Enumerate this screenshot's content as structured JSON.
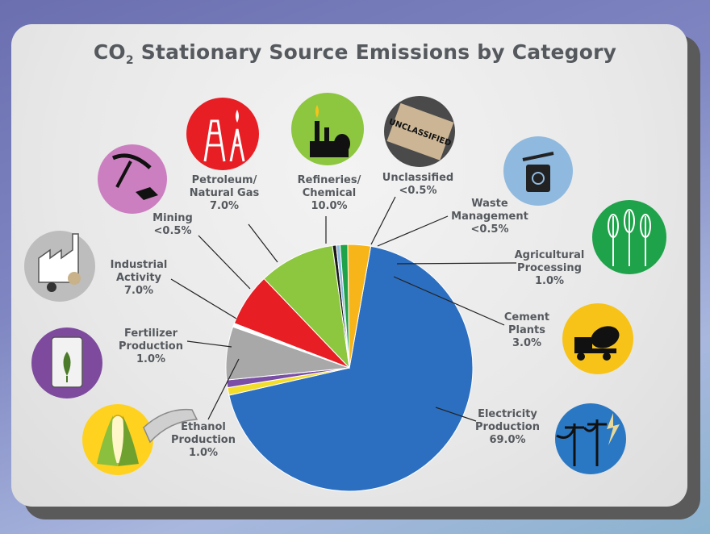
{
  "chart_data": {
    "type": "pie",
    "title": "CO",
    "title_sub": "2",
    "title_rest": " Stationary Source Emissions by Category",
    "start_angle_deg": 80,
    "slices": [
      {
        "name": "Electricity Production",
        "value": 69.0,
        "label": "69.0%",
        "color": "#2c6fc0",
        "lines": [
          "Electricity",
          "Production",
          "69.0%"
        ]
      },
      {
        "name": "Ethanol Production",
        "value": 1.0,
        "label": "1.0%",
        "color": "#f2dd2a",
        "lines": [
          "Ethanol",
          "Production",
          "1.0%"
        ]
      },
      {
        "name": "Fertilizer Production",
        "value": 1.0,
        "label": "1.0%",
        "color": "#7a4ea6",
        "lines": [
          "Fertilizer",
          "Production",
          "1.0%"
        ]
      },
      {
        "name": "Industrial Activity",
        "value": 7.0,
        "label": "7.0%",
        "color": "#a8a8a8",
        "lines": [
          "Industrial",
          "Activity",
          "7.0%"
        ]
      },
      {
        "name": "Mining",
        "value": 0.5,
        "label": "<0.5%",
        "color": "#ffffff",
        "lines": [
          "Mining",
          "<0.5%"
        ]
      },
      {
        "name": "Petroleum/ Natural Gas",
        "value": 7.0,
        "label": "7.0%",
        "color": "#e81e25",
        "lines": [
          "Petroleum/",
          "Natural Gas",
          "7.0%"
        ]
      },
      {
        "name": "Refineries/ Chemical",
        "value": 10.0,
        "label": "10.0%",
        "color": "#8dc63f",
        "lines": [
          "Refineries/",
          "Chemical",
          "10.0%"
        ]
      },
      {
        "name": "Unclassified",
        "value": 0.5,
        "label": "<0.5%",
        "color": "#1a1a1a",
        "lines": [
          "Unclassified",
          "<0.5%"
        ]
      },
      {
        "name": "Waste Management",
        "value": 0.5,
        "label": "<0.5%",
        "color": "#8fb9de",
        "lines": [
          "Waste",
          "Management",
          "<0.5%"
        ]
      },
      {
        "name": "Agricultural Processing",
        "value": 1.0,
        "label": "1.0%",
        "color": "#1fa34a",
        "lines": [
          "Agricultural",
          "Processing",
          "1.0%"
        ]
      },
      {
        "name": "Cement Plants",
        "value": 3.0,
        "label": "3.0%",
        "color": "#f7b519",
        "lines": [
          "Cement",
          "Plants",
          "3.0%"
        ]
      }
    ],
    "legend": "none",
    "icons": [
      {
        "name": "corn-icon",
        "color": "#ffd21f"
      },
      {
        "name": "fertilizer-bag-icon",
        "color": "#7e4a9e"
      },
      {
        "name": "factory-icon",
        "color": "#bdbdbd"
      },
      {
        "name": "pickaxe-icon",
        "color": "#cc7fc0"
      },
      {
        "name": "oil-derrick-icon",
        "color": "#e81e25"
      },
      {
        "name": "refinery-icon",
        "color": "#8dc63f"
      },
      {
        "name": "unclassified-stamp-icon",
        "color": "#4a4a4a",
        "text": "UNCLASSIFIED"
      },
      {
        "name": "recycle-bin-icon",
        "color": "#8fb9de"
      },
      {
        "name": "wheat-icon",
        "color": "#1fa34a"
      },
      {
        "name": "cement-truck-icon",
        "color": "#f7c318"
      },
      {
        "name": "power-lines-icon",
        "color": "#2a78c4"
      }
    ]
  }
}
